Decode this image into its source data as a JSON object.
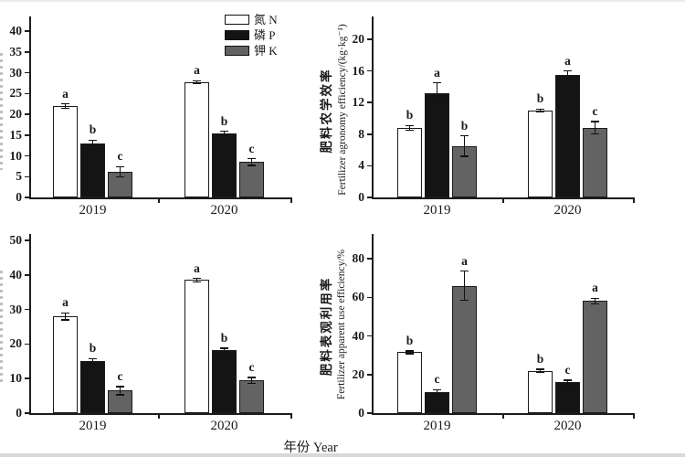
{
  "figure": {
    "background": "#ffffff",
    "xlabel": "年份 Year",
    "legend": {
      "items": [
        {
          "label": "氮 N",
          "color": "#ffffff"
        },
        {
          "label": "磷 P",
          "color": "#141414"
        },
        {
          "label": "钾 K",
          "color": "#636363"
        }
      ]
    },
    "accent_colors": {
      "bar_border": "#1a1a1a",
      "axis": "#1c1c1c"
    }
  },
  "chart_data": [
    {
      "id": "top-left",
      "type": "bar",
      "ylabel_zh": "",
      "ylabel_en": "",
      "ylabel_clipped": true,
      "ylim": [
        0,
        43
      ],
      "yticks": [
        0,
        5,
        10,
        15,
        20,
        25,
        30,
        35,
        40
      ],
      "categories": [
        "2019",
        "2020"
      ],
      "series": [
        {
          "name": "氮 N",
          "values": [
            22,
            27.8
          ],
          "errors": [
            0.5,
            0.3
          ],
          "letters": [
            "a",
            "a"
          ]
        },
        {
          "name": "磷 P",
          "values": [
            13,
            15.4
          ],
          "errors": [
            0.8,
            0.5
          ],
          "letters": [
            "b",
            "b"
          ]
        },
        {
          "name": "钾 K",
          "values": [
            6.2,
            8.5
          ],
          "errors": [
            1.2,
            0.8
          ],
          "letters": [
            "c",
            "c"
          ]
        }
      ]
    },
    {
      "id": "top-right",
      "type": "bar",
      "ylabel_zh": "肥料农学效率",
      "ylabel_en": "Fertilizer agronomy efficiency/(kg·kg⁻¹)",
      "ylabel_clipped": false,
      "ylim": [
        0,
        22.5
      ],
      "yticks": [
        0,
        4,
        8,
        12,
        16,
        20
      ],
      "categories": [
        "2019",
        "2020"
      ],
      "series": [
        {
          "name": "氮 N",
          "values": [
            8.8,
            11
          ],
          "errors": [
            0.3,
            0.2
          ],
          "letters": [
            "b",
            "b"
          ]
        },
        {
          "name": "磷 P",
          "values": [
            13.2,
            15.5
          ],
          "errors": [
            1.3,
            0.5
          ],
          "letters": [
            "a",
            "a"
          ]
        },
        {
          "name": "钾 K",
          "values": [
            6.5,
            8.8
          ],
          "errors": [
            1.3,
            0.8
          ],
          "letters": [
            "b",
            "c"
          ]
        }
      ]
    },
    {
      "id": "bottom-left",
      "type": "bar",
      "ylabel_zh": "",
      "ylabel_en": "",
      "ylabel_clipped": true,
      "ylim": [
        0,
        51.5
      ],
      "yticks": [
        0,
        10,
        20,
        30,
        40,
        50
      ],
      "categories": [
        "2019",
        "2020"
      ],
      "series": [
        {
          "name": "氮 N",
          "values": [
            28,
            38.5
          ],
          "errors": [
            1.0,
            0.5
          ],
          "letters": [
            "a",
            "a"
          ]
        },
        {
          "name": "磷 P",
          "values": [
            15,
            18.2
          ],
          "errors": [
            0.8,
            0.6
          ],
          "letters": [
            "b",
            "b"
          ]
        },
        {
          "name": "钾 K",
          "values": [
            6.5,
            9.5
          ],
          "errors": [
            1.2,
            0.8
          ],
          "letters": [
            "c",
            "c"
          ]
        }
      ]
    },
    {
      "id": "bottom-right",
      "type": "bar",
      "ylabel_zh": "肥料表观利用率",
      "ylabel_en": "Fertilizer apparent use efficiency/%",
      "ylabel_clipped": false,
      "ylim": [
        0,
        95
      ],
      "yticks": [
        0,
        20,
        40,
        60,
        80
      ],
      "categories": [
        "2019",
        "2020"
      ],
      "series": [
        {
          "name": "氮 N",
          "values": [
            31.5,
            22
          ],
          "errors": [
            0.7,
            0.8
          ],
          "letters": [
            "b",
            "b"
          ]
        },
        {
          "name": "磷 P",
          "values": [
            11,
            16
          ],
          "errors": [
            1.2,
            1.0
          ],
          "letters": [
            "c",
            "c"
          ]
        },
        {
          "name": "钾 K",
          "values": [
            66,
            58
          ],
          "errors": [
            7.5,
            1.5
          ],
          "letters": [
            "a",
            "a"
          ]
        }
      ]
    }
  ]
}
